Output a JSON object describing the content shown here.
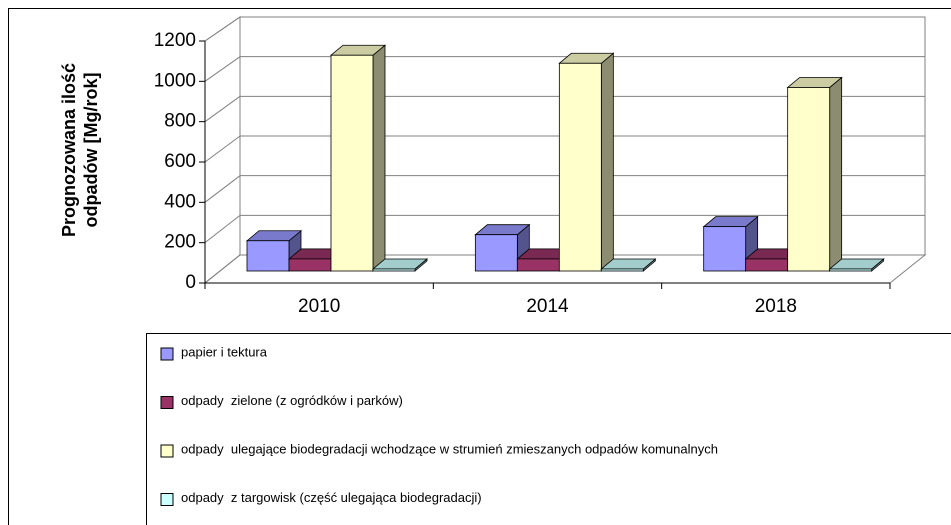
{
  "chart_data": {
    "type": "bar3d",
    "ylabel": [
      "Prognozowana ilość",
      "odpadów [Mg/rok]"
    ],
    "categories": [
      "2010",
      "2014",
      "2018"
    ],
    "series": [
      {
        "name": "papier i tektura",
        "color": "#9999ff",
        "values": [
          150,
          180,
          220
        ]
      },
      {
        "name": "odpady  zielone (z ogródków i parków)",
        "color": "#993366",
        "values": [
          60,
          60,
          60
        ]
      },
      {
        "name": "odpady  ulegające biodegradacji wchodzące w strumień zmieszanych odpadów komunalnych",
        "color": "#ffffcc",
        "values": [
          1070,
          1030,
          910
        ]
      },
      {
        "name": "odpady  z targowisk (część ulegająca biodegradacji)",
        "color": "#ccffff",
        "values": [
          10,
          10,
          10
        ]
      }
    ],
    "ylim": [
      0,
      1200
    ],
    "yticks": [
      0,
      200,
      400,
      600,
      800,
      1000,
      1200
    ],
    "grid": true,
    "legend": "bottom"
  }
}
